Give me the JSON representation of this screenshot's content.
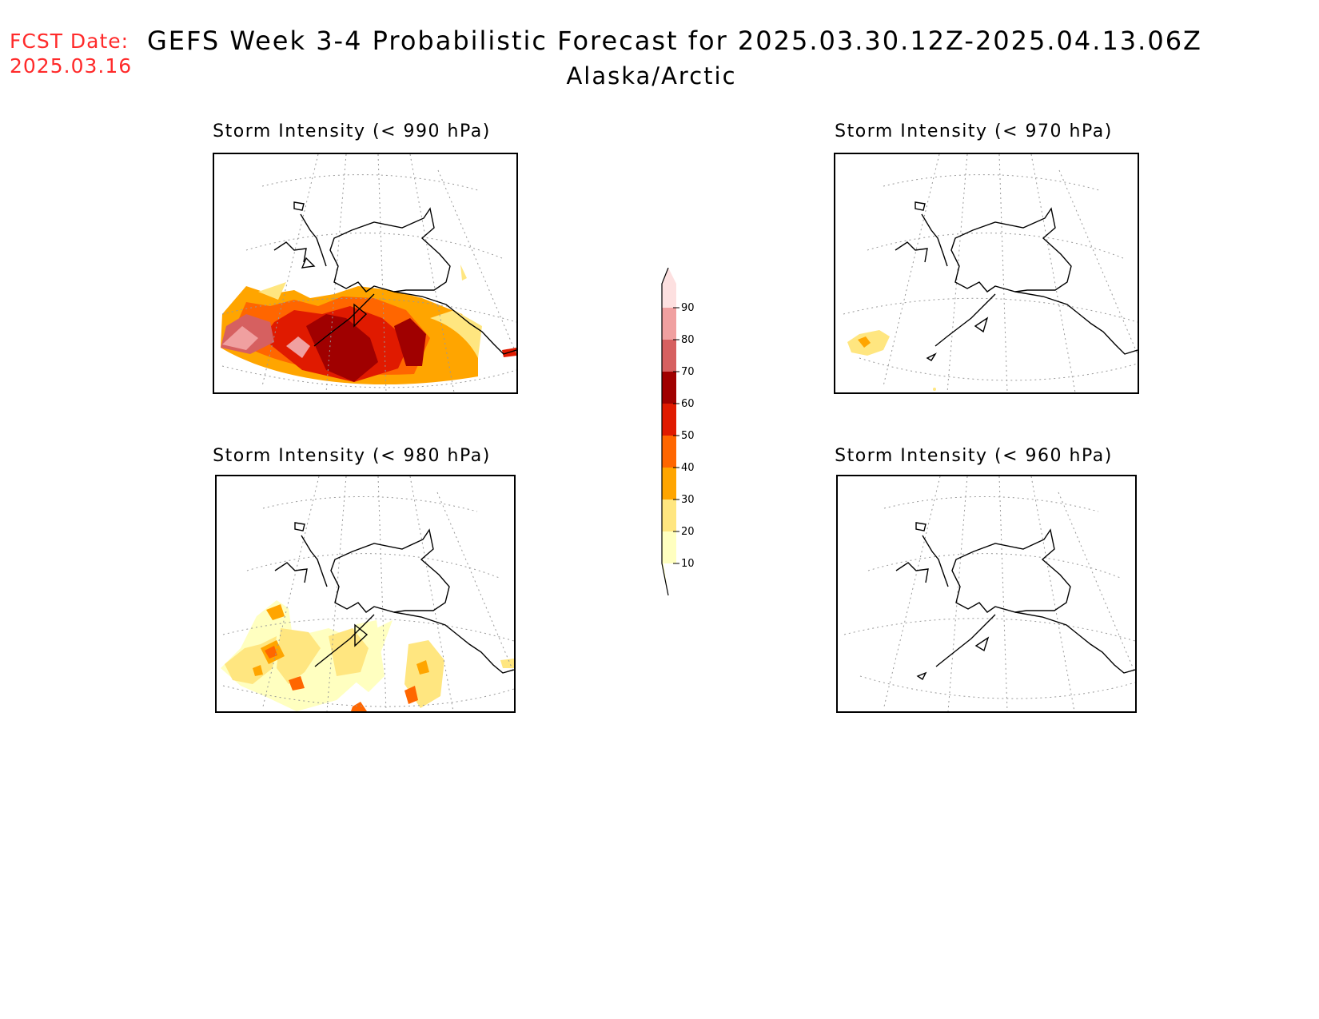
{
  "header": {
    "fcst_label": "FCST Date:",
    "fcst_date": "2025.03.16",
    "title": "GEFS Week 3-4 Probabilistic Forecast for 2025.03.30.12Z-2025.04.13.06Z",
    "subtitle": "Alaska/Arctic"
  },
  "panels": [
    {
      "title": "Storm Intensity (< 990 hPa)"
    },
    {
      "title": "Storm Intensity (< 970 hPa)"
    },
    {
      "title": "Storm Intensity (< 980 hPa)"
    },
    {
      "title": "Storm Intensity (< 960 hPa)"
    }
  ],
  "colorbar": {
    "levels": [
      "10",
      "20",
      "30",
      "40",
      "50",
      "60",
      "70",
      "80",
      "90"
    ],
    "colors": [
      "#ffffc0",
      "#ffe680",
      "#ffa500",
      "#ff6600",
      "#e01a00",
      "#a00000",
      "#d66060",
      "#f0a0a0",
      "#fde0e0"
    ]
  }
}
